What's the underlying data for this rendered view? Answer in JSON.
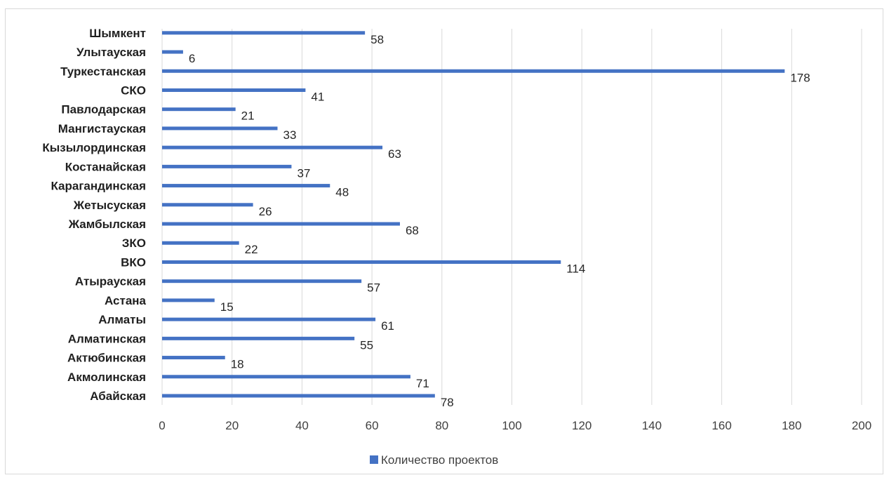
{
  "chart_data": {
    "type": "bar",
    "orientation": "horizontal",
    "categories": [
      "Абайская",
      "Акмолинская",
      "Актюбинская",
      "Алматинская",
      "Алматы",
      "Астана",
      "Атырауская",
      "ВКО",
      "ЗКО",
      "Жамбылская",
      "Жетысуская",
      "Карагандинская",
      "Костанайская",
      "Кызылординская",
      "Мангистауская",
      "Павлодарская",
      "СКО",
      "Туркестанская",
      "Улытауская",
      "Шымкент"
    ],
    "series": [
      {
        "name": "Количество проектов",
        "color": "#4472c4",
        "values": [
          78,
          71,
          18,
          55,
          61,
          15,
          57,
          114,
          22,
          68,
          26,
          48,
          37,
          63,
          33,
          21,
          41,
          178,
          6,
          58
        ]
      }
    ],
    "xlim": [
      0,
      200
    ],
    "xticks": [
      0,
      20,
      40,
      60,
      80,
      100,
      120,
      140,
      160,
      180,
      200
    ],
    "grid": "vertical",
    "legend_position": "bottom"
  }
}
